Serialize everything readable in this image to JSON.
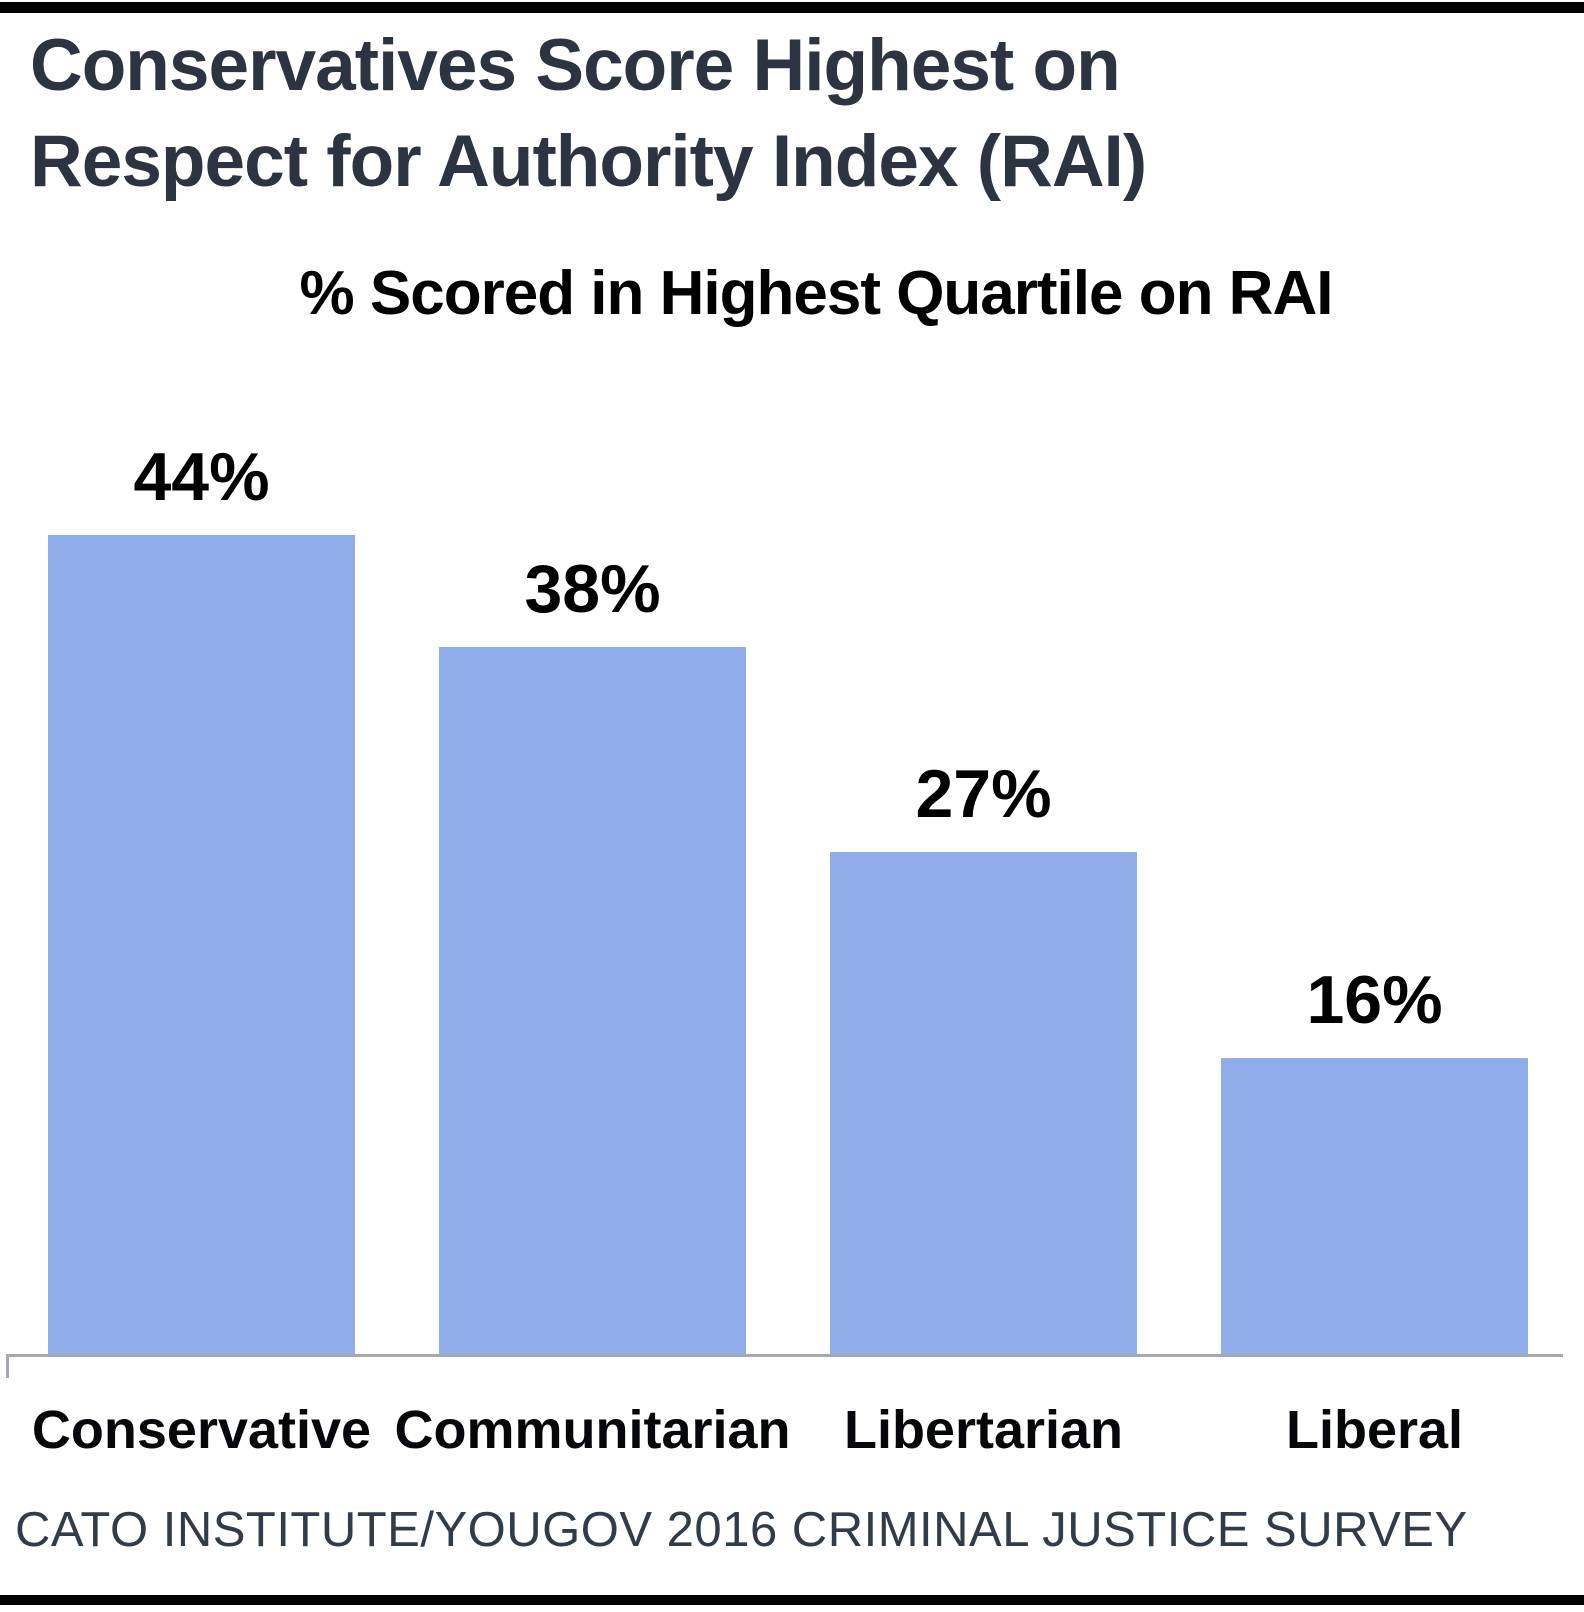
{
  "title": {
    "line1": "Conservatives Score Highest on",
    "line2": "Respect for Authority Index (RAI)"
  },
  "subtitle": "% Scored in Highest Quartile on RAI",
  "source": "CATO INSTITUTE/YOUGOV 2016 CRIMINAL JUSTICE SURVEY",
  "colors": {
    "background": "#FFFFFF",
    "bar": "#90ADE9",
    "title_text": "#2B3440",
    "label_text": "#000000",
    "category_text": "#05070B",
    "source_text": "#323C48",
    "axis_line": "#A6A8B0",
    "rule": "#000000"
  },
  "chart_data": {
    "type": "bar",
    "title": "% Scored in Highest Quartile on RAI",
    "categories": [
      "Conservative",
      "Communitarian",
      "Libertarian",
      "Liberal"
    ],
    "values": [
      44,
      38,
      27,
      16
    ],
    "value_labels": [
      "44%",
      "38%",
      "27%",
      "16%"
    ],
    "xlabel": "",
    "ylabel": "",
    "ylim": [
      0,
      50
    ],
    "grid": false,
    "legend": "none",
    "orientation": "vertical",
    "annotations": [
      "data labels above each bar"
    ]
  }
}
